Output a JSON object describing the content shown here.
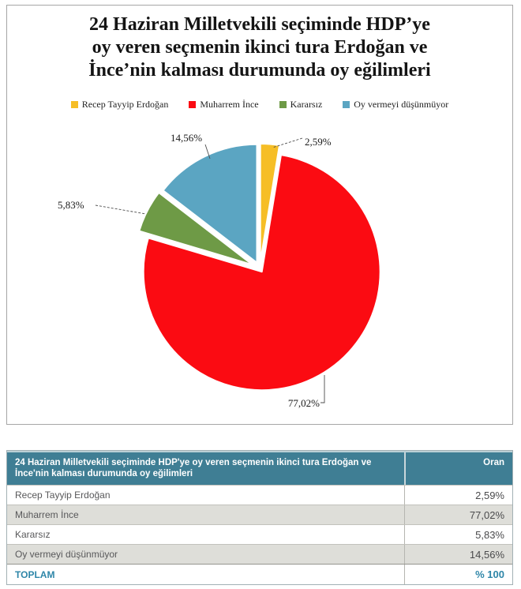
{
  "chart": {
    "title_lines": [
      "24 Haziran Milletvekili seçiminde HDP’ye",
      "oy veren seçmenin ikinci tura Erdoğan ve",
      "İnce’nin kalması durumunda oy eğilimleri"
    ],
    "legend": [
      {
        "label": "Recep Tayyip Erdoğan",
        "color": "#f6be26"
      },
      {
        "label": "Muharrem İnce",
        "color": "#fb0b12"
      },
      {
        "label": "Kararsız",
        "color": "#6e9a46"
      },
      {
        "label": "Oy vermeyi düşünmüyor",
        "color": "#5ba5c2"
      }
    ]
  },
  "chart_data": {
    "type": "pie",
    "title": "24 Haziran Milletvekili seçiminde HDP’ye oy veren seçmenin ikinci tura Erdoğan ve İnce’nin kalması durumunda oy eğilimleri",
    "categories": [
      "Recep Tayyip Erdoğan",
      "Muharrem İnce",
      "Kararsız",
      "Oy vermeyi düşünmüyor"
    ],
    "values": [
      2.59,
      77.02,
      5.83,
      14.56
    ],
    "labels": [
      "2,59%",
      "77,02%",
      "5,83%",
      "14,56%"
    ],
    "colors": [
      "#f6be26",
      "#fb0b12",
      "#6e9a46",
      "#5ba5c2"
    ],
    "total": 100,
    "start_angle_deg": 0,
    "direction": "clockwise",
    "legend_position": "top"
  },
  "table": {
    "header": {
      "title": "24 Haziran Milletvekili seçiminde HDP'ye oy veren seçmenin ikinci tura Erdoğan ve İnce'nin kalması durumunda oy eğilimleri",
      "value_col": "Oran"
    },
    "rows": [
      {
        "label": "Recep Tayyip Erdoğan",
        "value": "2,59%"
      },
      {
        "label": "Muharrem İnce",
        "value": "77,02%"
      },
      {
        "label": "Kararsız",
        "value": "5,83%"
      },
      {
        "label": "Oy vermeyi düşünmüyor",
        "value": "14,56%"
      }
    ],
    "total_row": {
      "label": "TOPLAM",
      "value": "% 100"
    }
  },
  "colors": {
    "header_bg": "#3f7e94",
    "stripe_bg": "#deded9",
    "teal_text": "#2e86a8",
    "row_text": "#58585a",
    "chart_border": "#a6a6a6"
  }
}
